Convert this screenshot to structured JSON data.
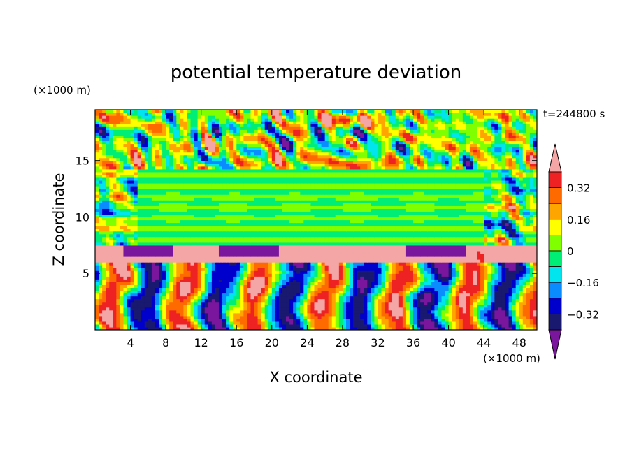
{
  "chart_data": {
    "type": "heatmap",
    "title": "potential temperature deviation",
    "xlabel": "X coordinate",
    "ylabel": "Z coordinate",
    "x_unit_label": "(×1000 m)",
    "y_unit_label": "(×1000 m)",
    "time_label": "t=244800 s",
    "xlim": [
      0,
      50
    ],
    "ylim": [
      0,
      19.5
    ],
    "x_ticks": [
      4,
      8,
      12,
      16,
      20,
      24,
      28,
      32,
      36,
      40,
      44,
      48
    ],
    "y_ticks": [
      5,
      10,
      15
    ],
    "colorbar": {
      "levels": [
        -0.4,
        -0.32,
        -0.24,
        -0.16,
        -0.08,
        0,
        0.08,
        0.16,
        0.24,
        0.32,
        0.4
      ],
      "labels": [
        "0.32",
        "0.16",
        "0",
        "−0.16",
        "−0.32"
      ],
      "label_values": [
        0.32,
        0.16,
        0,
        -0.16,
        -0.32
      ],
      "extend": "both",
      "colors": [
        "#ee2222",
        "#ff6a00",
        "#ffa500",
        "#ffff00",
        "#7fff00",
        "#00ee76",
        "#00e5ee",
        "#0a8cff",
        "#0000cd",
        "#191970"
      ],
      "over_color": "#f4a6a6",
      "under_color": "#7a169e"
    },
    "field_regions": [
      {
        "zone": "upper layer z≈14–19.5 km",
        "pattern": "mixed positive and negative patches",
        "values": [
          0.4,
          -0.4,
          0.2,
          -0.2
        ]
      },
      {
        "zone": "middle layer z≈7–14 km",
        "pattern": "horizontal banded near-zero",
        "values": [
          0.0,
          0.08,
          -0.08
        ]
      },
      {
        "zone": "band z≈7 km",
        "pattern": "strong positive",
        "values": [
          0.4
        ]
      },
      {
        "zone": "lower layer z≈0–7 km",
        "pattern": "convective plumes alternating sign",
        "values": [
          0.3,
          -0.3
        ]
      }
    ]
  }
}
